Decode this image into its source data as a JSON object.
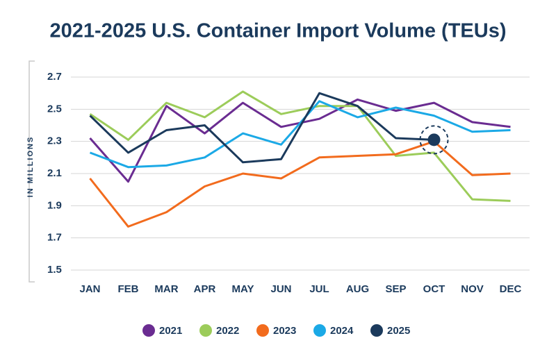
{
  "chart_data": {
    "type": "line",
    "title": "2021-2025 U.S. Container Import Volume (TEUs)",
    "y_label": "IN MILLIONS",
    "categories": [
      "JAN",
      "FEB",
      "MAR",
      "APR",
      "MAY",
      "JUN",
      "JUL",
      "AUG",
      "SEP",
      "OCT",
      "NOV",
      "DEC"
    ],
    "series": [
      {
        "name": "2021",
        "color": "#6a2c91",
        "values": [
          2.32,
          2.05,
          2.52,
          2.35,
          2.54,
          2.39,
          2.44,
          2.56,
          2.49,
          2.54,
          2.42,
          2.39
        ]
      },
      {
        "name": "2022",
        "color": "#9ccc5a",
        "values": [
          2.47,
          2.31,
          2.54,
          2.45,
          2.61,
          2.47,
          2.52,
          2.52,
          2.21,
          2.23,
          1.94,
          1.93
        ]
      },
      {
        "name": "2023",
        "color": "#f26b1d",
        "values": [
          2.07,
          1.77,
          1.86,
          2.02,
          2.1,
          2.07,
          2.2,
          2.21,
          2.22,
          2.3,
          2.09,
          2.1
        ]
      },
      {
        "name": "2024",
        "color": "#1ba9e6",
        "values": [
          2.23,
          2.14,
          2.15,
          2.2,
          2.35,
          2.28,
          2.55,
          2.45,
          2.51,
          2.46,
          2.36,
          2.37
        ]
      },
      {
        "name": "2025",
        "color": "#1b3a5c",
        "values": [
          2.46,
          2.23,
          2.37,
          2.4,
          2.17,
          2.19,
          2.6,
          2.52,
          2.32,
          2.31,
          null,
          null
        ]
      }
    ],
    "ylim": [
      1.5,
      2.7
    ],
    "yticks": [
      1.5,
      1.7,
      1.9,
      2.1,
      2.3,
      2.5,
      2.7
    ],
    "grid": true,
    "legend": "bottom"
  }
}
